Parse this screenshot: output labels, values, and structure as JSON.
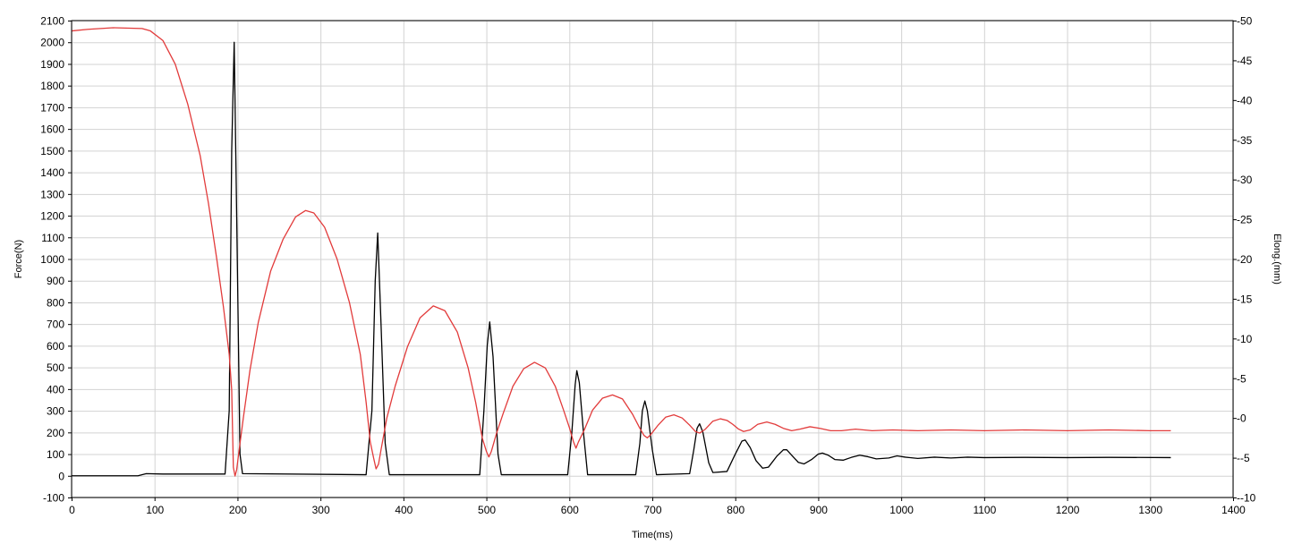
{
  "chart_data": {
    "type": "line",
    "grid": true,
    "xlabel": "Time(ms)",
    "ylabel_left": "Force(N)",
    "ylabel_right": "Elong.(mm)",
    "xlim": [
      0,
      1400
    ],
    "ylim_left": [
      -100,
      2100
    ],
    "ylim_right": [
      -10,
      50
    ],
    "x_ticks": [
      0,
      100,
      200,
      300,
      400,
      500,
      600,
      700,
      800,
      900,
      1000,
      1100,
      1200,
      1300,
      1400
    ],
    "y_left_ticks": [
      -100,
      0,
      100,
      200,
      300,
      400,
      500,
      600,
      700,
      800,
      900,
      1000,
      1100,
      1200,
      1300,
      1400,
      1500,
      1600,
      1700,
      1800,
      1900,
      2000,
      2100
    ],
    "y_right_ticks": [
      -10,
      -5,
      0,
      5,
      10,
      15,
      20,
      25,
      30,
      35,
      40,
      45,
      50
    ],
    "series": [
      {
        "axis": "left",
        "color": "#000000",
        "points": [
          [
            0,
            0
          ],
          [
            80,
            0
          ],
          [
            90,
            10
          ],
          [
            110,
            8
          ],
          [
            185,
            8
          ],
          [
            190,
            300
          ],
          [
            193,
            1500
          ],
          [
            196,
            2000
          ],
          [
            199,
            1200
          ],
          [
            203,
            100
          ],
          [
            206,
            10
          ],
          [
            355,
            5
          ],
          [
            362,
            300
          ],
          [
            366,
            900
          ],
          [
            369,
            1120
          ],
          [
            373,
            700
          ],
          [
            378,
            150
          ],
          [
            383,
            5
          ],
          [
            492,
            5
          ],
          [
            497,
            300
          ],
          [
            501,
            600
          ],
          [
            504,
            710
          ],
          [
            508,
            550
          ],
          [
            514,
            100
          ],
          [
            518,
            5
          ],
          [
            598,
            5
          ],
          [
            603,
            200
          ],
          [
            607,
            420
          ],
          [
            609,
            485
          ],
          [
            612,
            430
          ],
          [
            617,
            200
          ],
          [
            622,
            5
          ],
          [
            680,
            5
          ],
          [
            685,
            150
          ],
          [
            688,
            300
          ],
          [
            691,
            345
          ],
          [
            694,
            300
          ],
          [
            700,
            120
          ],
          [
            705,
            5
          ],
          [
            745,
            10
          ],
          [
            750,
            120
          ],
          [
            754,
            220
          ],
          [
            757,
            240
          ],
          [
            761,
            200
          ],
          [
            768,
            60
          ],
          [
            773,
            15
          ],
          [
            790,
            20
          ],
          [
            800,
            100
          ],
          [
            808,
            160
          ],
          [
            812,
            165
          ],
          [
            818,
            130
          ],
          [
            825,
            70
          ],
          [
            833,
            35
          ],
          [
            840,
            40
          ],
          [
            850,
            90
          ],
          [
            858,
            120
          ],
          [
            862,
            120
          ],
          [
            868,
            95
          ],
          [
            876,
            62
          ],
          [
            883,
            55
          ],
          [
            892,
            75
          ],
          [
            900,
            100
          ],
          [
            905,
            105
          ],
          [
            912,
            95
          ],
          [
            920,
            75
          ],
          [
            930,
            72
          ],
          [
            940,
            85
          ],
          [
            950,
            95
          ],
          [
            960,
            88
          ],
          [
            970,
            78
          ],
          [
            985,
            82
          ],
          [
            995,
            92
          ],
          [
            1005,
            86
          ],
          [
            1020,
            80
          ],
          [
            1040,
            86
          ],
          [
            1060,
            82
          ],
          [
            1080,
            86
          ],
          [
            1100,
            84
          ],
          [
            1150,
            85
          ],
          [
            1200,
            84
          ],
          [
            1250,
            85
          ],
          [
            1325,
            84
          ]
        ]
      },
      {
        "axis": "right",
        "color": "#e23b3b",
        "points": [
          [
            0,
            48.7
          ],
          [
            20,
            48.9
          ],
          [
            50,
            49.1
          ],
          [
            85,
            49.0
          ],
          [
            95,
            48.7
          ],
          [
            110,
            47.5
          ],
          [
            125,
            44.5
          ],
          [
            140,
            39.5
          ],
          [
            155,
            33
          ],
          [
            165,
            27
          ],
          [
            175,
            20
          ],
          [
            183,
            14
          ],
          [
            190,
            8
          ],
          [
            193,
            3.5
          ],
          [
            195,
            -6.2
          ],
          [
            197,
            -7.3
          ],
          [
            199,
            -6.5
          ],
          [
            202,
            -4
          ],
          [
            207,
            0
          ],
          [
            215,
            6
          ],
          [
            225,
            12
          ],
          [
            240,
            18.5
          ],
          [
            255,
            22.5
          ],
          [
            270,
            25.3
          ],
          [
            282,
            26.1
          ],
          [
            292,
            25.8
          ],
          [
            305,
            24
          ],
          [
            320,
            20
          ],
          [
            335,
            14.5
          ],
          [
            348,
            8
          ],
          [
            355,
            2
          ],
          [
            360,
            -3
          ],
          [
            364,
            -5
          ],
          [
            367,
            -6.4
          ],
          [
            370,
            -5.8
          ],
          [
            373,
            -4
          ],
          [
            380,
            0
          ],
          [
            390,
            4
          ],
          [
            405,
            9
          ],
          [
            420,
            12.6
          ],
          [
            436,
            14.1
          ],
          [
            450,
            13.5
          ],
          [
            465,
            10.8
          ],
          [
            478,
            6.3
          ],
          [
            487,
            2
          ],
          [
            495,
            -2.5
          ],
          [
            500,
            -4.2
          ],
          [
            503,
            -4.9
          ],
          [
            506,
            -4.2
          ],
          [
            512,
            -2
          ],
          [
            520,
            0.5
          ],
          [
            532,
            4
          ],
          [
            545,
            6.2
          ],
          [
            558,
            7
          ],
          [
            571,
            6.3
          ],
          [
            583,
            4
          ],
          [
            593,
            1
          ],
          [
            600,
            -1.2
          ],
          [
            605,
            -3
          ],
          [
            608,
            -3.8
          ],
          [
            611,
            -3
          ],
          [
            618,
            -1.5
          ],
          [
            628,
            1
          ],
          [
            640,
            2.5
          ],
          [
            652,
            2.9
          ],
          [
            664,
            2.4
          ],
          [
            676,
            0.5
          ],
          [
            685,
            -1.3
          ],
          [
            690,
            -2.2
          ],
          [
            694,
            -2.5
          ],
          [
            698,
            -2.1
          ],
          [
            707,
            -0.9
          ],
          [
            716,
            0.1
          ],
          [
            726,
            0.4
          ],
          [
            736,
            0
          ],
          [
            745,
            -0.9
          ],
          [
            752,
            -1.7
          ],
          [
            757,
            -1.9
          ],
          [
            764,
            -1.4
          ],
          [
            773,
            -0.4
          ],
          [
            782,
            -0.1
          ],
          [
            790,
            -0.3
          ],
          [
            797,
            -0.8
          ],
          [
            804,
            -1.4
          ],
          [
            810,
            -1.7
          ],
          [
            818,
            -1.5
          ],
          [
            827,
            -0.8
          ],
          [
            838,
            -0.5
          ],
          [
            848,
            -0.8
          ],
          [
            858,
            -1.3
          ],
          [
            868,
            -1.6
          ],
          [
            878,
            -1.4
          ],
          [
            890,
            -1.1
          ],
          [
            902,
            -1.3
          ],
          [
            915,
            -1.6
          ],
          [
            928,
            -1.6
          ],
          [
            945,
            -1.4
          ],
          [
            965,
            -1.6
          ],
          [
            990,
            -1.5
          ],
          [
            1020,
            -1.6
          ],
          [
            1060,
            -1.5
          ],
          [
            1100,
            -1.6
          ],
          [
            1150,
            -1.5
          ],
          [
            1200,
            -1.6
          ],
          [
            1250,
            -1.5
          ],
          [
            1300,
            -1.6
          ],
          [
            1325,
            -1.6
          ]
        ]
      }
    ]
  }
}
